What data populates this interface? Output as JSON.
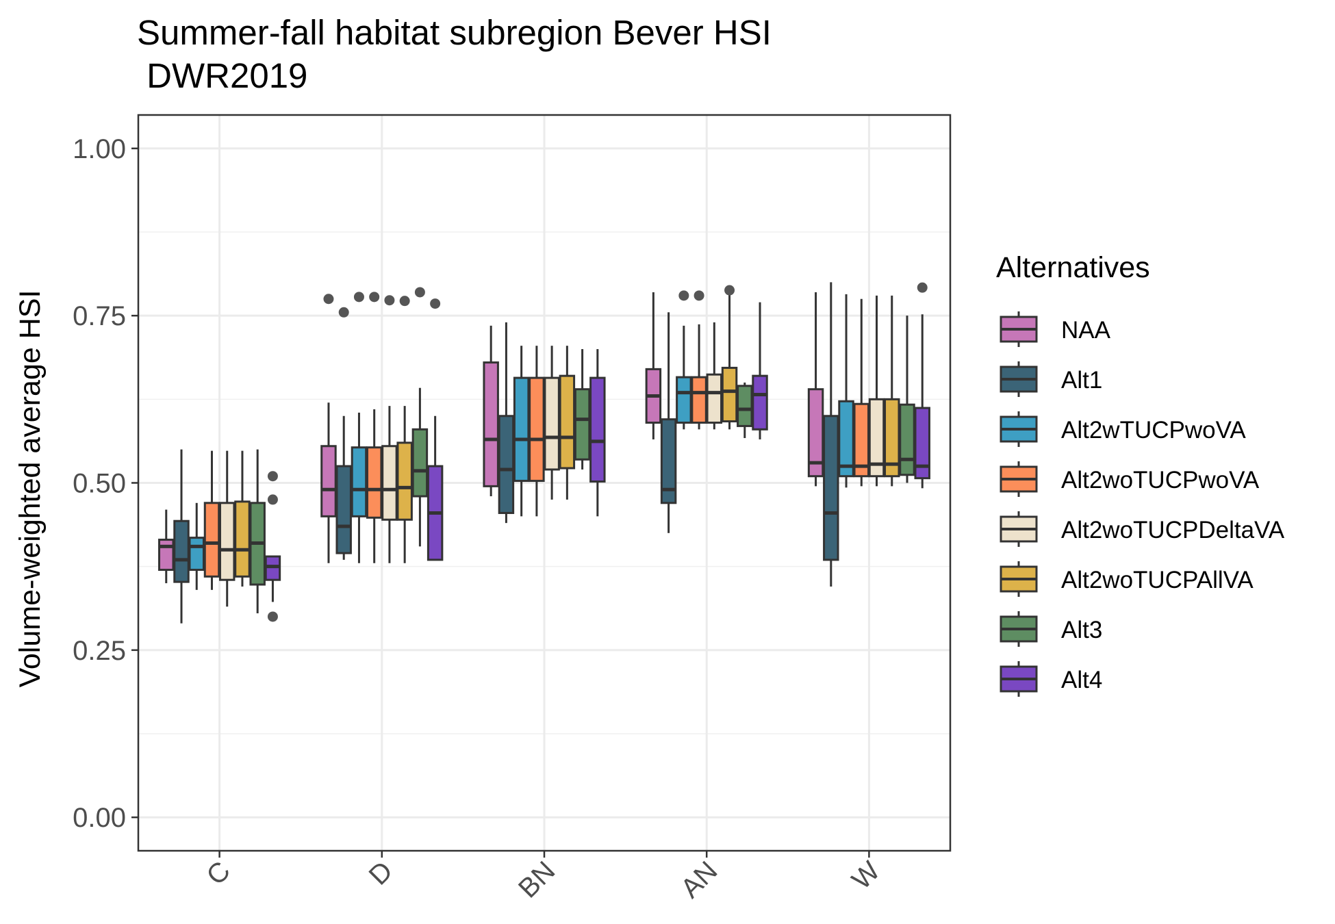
{
  "chart_data": {
    "type": "box",
    "title_lines": [
      "Summer-fall habitat subregion Bever HSI",
      " DWR2019"
    ],
    "xlabel": "",
    "ylabel": "Volume-weighted average HSI",
    "ylim": [
      -0.05,
      1.05
    ],
    "yticks": [
      0.0,
      0.25,
      0.5,
      0.75,
      1.0
    ],
    "ytick_labels": [
      "0.00",
      "0.25",
      "0.50",
      "0.75",
      "1.00"
    ],
    "categories": [
      "C",
      "D",
      "BN",
      "AN",
      "W"
    ],
    "grid": true,
    "legend": {
      "title": "Alternatives",
      "position": "right"
    },
    "series": [
      {
        "name": "NAA",
        "color": "#c677b8",
        "boxes": [
          {
            "whisker_low": 0.35,
            "q1": 0.37,
            "median": 0.405,
            "q3": 0.415,
            "whisker_high": 0.46,
            "outliers": []
          },
          {
            "whisker_low": 0.38,
            "q1": 0.45,
            "median": 0.49,
            "q3": 0.555,
            "whisker_high": 0.62,
            "outliers": [
              0.775
            ]
          },
          {
            "whisker_low": 0.48,
            "q1": 0.495,
            "median": 0.565,
            "q3": 0.68,
            "whisker_high": 0.735,
            "outliers": []
          },
          {
            "whisker_low": 0.565,
            "q1": 0.59,
            "median": 0.63,
            "q3": 0.67,
            "whisker_high": 0.785,
            "outliers": []
          },
          {
            "whisker_low": 0.495,
            "q1": 0.51,
            "median": 0.53,
            "q3": 0.64,
            "whisker_high": 0.785,
            "outliers": []
          }
        ]
      },
      {
        "name": "Alt1",
        "color": "#3b6477",
        "boxes": [
          {
            "whisker_low": 0.29,
            "q1": 0.352,
            "median": 0.385,
            "q3": 0.443,
            "whisker_high": 0.55,
            "outliers": []
          },
          {
            "whisker_low": 0.385,
            "q1": 0.395,
            "median": 0.435,
            "q3": 0.525,
            "whisker_high": 0.6,
            "outliers": [
              0.755
            ]
          },
          {
            "whisker_low": 0.44,
            "q1": 0.455,
            "median": 0.52,
            "q3": 0.6,
            "whisker_high": 0.74,
            "outliers": []
          },
          {
            "whisker_low": 0.425,
            "q1": 0.47,
            "median": 0.49,
            "q3": 0.595,
            "whisker_high": 0.755,
            "outliers": []
          },
          {
            "whisker_low": 0.345,
            "q1": 0.385,
            "median": 0.455,
            "q3": 0.6,
            "whisker_high": 0.8,
            "outliers": []
          }
        ]
      },
      {
        "name": "Alt2wTUCPwoVA",
        "color": "#3e9fc3",
        "boxes": [
          {
            "whisker_low": 0.34,
            "q1": 0.37,
            "median": 0.405,
            "q3": 0.418,
            "whisker_high": 0.47,
            "outliers": []
          },
          {
            "whisker_low": 0.38,
            "q1": 0.45,
            "median": 0.49,
            "q3": 0.553,
            "whisker_high": 0.605,
            "outliers": [
              0.778
            ]
          },
          {
            "whisker_low": 0.45,
            "q1": 0.503,
            "median": 0.565,
            "q3": 0.657,
            "whisker_high": 0.705,
            "outliers": []
          },
          {
            "whisker_low": 0.58,
            "q1": 0.59,
            "median": 0.635,
            "q3": 0.658,
            "whisker_high": 0.735,
            "outliers": [
              0.78
            ]
          },
          {
            "whisker_low": 0.493,
            "q1": 0.51,
            "median": 0.525,
            "q3": 0.622,
            "whisker_high": 0.782,
            "outliers": []
          }
        ]
      },
      {
        "name": "Alt2woTUCPwoVA",
        "color": "#fc8e5a",
        "boxes": [
          {
            "whisker_low": 0.34,
            "q1": 0.36,
            "median": 0.41,
            "q3": 0.47,
            "whisker_high": 0.548,
            "outliers": []
          },
          {
            "whisker_low": 0.38,
            "q1": 0.448,
            "median": 0.49,
            "q3": 0.553,
            "whisker_high": 0.61,
            "outliers": [
              0.778
            ]
          },
          {
            "whisker_low": 0.45,
            "q1": 0.503,
            "median": 0.565,
            "q3": 0.657,
            "whisker_high": 0.705,
            "outliers": []
          },
          {
            "whisker_low": 0.58,
            "q1": 0.59,
            "median": 0.635,
            "q3": 0.658,
            "whisker_high": 0.737,
            "outliers": [
              0.78
            ]
          },
          {
            "whisker_low": 0.495,
            "q1": 0.51,
            "median": 0.525,
            "q3": 0.618,
            "whisker_high": 0.775,
            "outliers": []
          }
        ]
      },
      {
        "name": "Alt2woTUCPDeltaVA",
        "color": "#ede2cc",
        "boxes": [
          {
            "whisker_low": 0.315,
            "q1": 0.355,
            "median": 0.4,
            "q3": 0.47,
            "whisker_high": 0.548,
            "outliers": []
          },
          {
            "whisker_low": 0.38,
            "q1": 0.445,
            "median": 0.49,
            "q3": 0.555,
            "whisker_high": 0.615,
            "outliers": [
              0.773
            ]
          },
          {
            "whisker_low": 0.475,
            "q1": 0.52,
            "median": 0.568,
            "q3": 0.657,
            "whisker_high": 0.705,
            "outliers": []
          },
          {
            "whisker_low": 0.58,
            "q1": 0.59,
            "median": 0.635,
            "q3": 0.662,
            "whisker_high": 0.74,
            "outliers": []
          },
          {
            "whisker_low": 0.495,
            "q1": 0.51,
            "median": 0.528,
            "q3": 0.625,
            "whisker_high": 0.78,
            "outliers": []
          }
        ]
      },
      {
        "name": "Alt2woTUCPAllVA",
        "color": "#ddb24a",
        "boxes": [
          {
            "whisker_low": 0.345,
            "q1": 0.36,
            "median": 0.4,
            "q3": 0.472,
            "whisker_high": 0.548,
            "outliers": []
          },
          {
            "whisker_low": 0.38,
            "q1": 0.445,
            "median": 0.493,
            "q3": 0.56,
            "whisker_high": 0.615,
            "outliers": [
              0.772
            ]
          },
          {
            "whisker_low": 0.475,
            "q1": 0.522,
            "median": 0.568,
            "q3": 0.66,
            "whisker_high": 0.705,
            "outliers": []
          },
          {
            "whisker_low": 0.58,
            "q1": 0.592,
            "median": 0.637,
            "q3": 0.672,
            "whisker_high": 0.787,
            "outliers": [
              0.788
            ]
          },
          {
            "whisker_low": 0.495,
            "q1": 0.51,
            "median": 0.528,
            "q3": 0.625,
            "whisker_high": 0.78,
            "outliers": []
          }
        ]
      },
      {
        "name": "Alt3",
        "color": "#5e8d62",
        "boxes": [
          {
            "whisker_low": 0.305,
            "q1": 0.348,
            "median": 0.41,
            "q3": 0.47,
            "whisker_high": 0.55,
            "outliers": []
          },
          {
            "whisker_low": 0.405,
            "q1": 0.48,
            "median": 0.518,
            "q3": 0.58,
            "whisker_high": 0.642,
            "outliers": [
              0.785
            ]
          },
          {
            "whisker_low": 0.52,
            "q1": 0.535,
            "median": 0.595,
            "q3": 0.64,
            "whisker_high": 0.7,
            "outliers": []
          },
          {
            "whisker_low": 0.567,
            "q1": 0.585,
            "median": 0.61,
            "q3": 0.645,
            "whisker_high": 0.65,
            "outliers": []
          },
          {
            "whisker_low": 0.5,
            "q1": 0.512,
            "median": 0.535,
            "q3": 0.617,
            "whisker_high": 0.75,
            "outliers": []
          }
        ]
      },
      {
        "name": "Alt4",
        "color": "#7a48c2",
        "boxes": [
          {
            "whisker_low": 0.322,
            "q1": 0.355,
            "median": 0.375,
            "q3": 0.39,
            "whisker_high": 0.39,
            "outliers": [
              0.51,
              0.475,
              0.3
            ]
          },
          {
            "whisker_low": 0.385,
            "q1": 0.385,
            "median": 0.455,
            "q3": 0.525,
            "whisker_high": 0.6,
            "outliers": [
              0.768
            ]
          },
          {
            "whisker_low": 0.45,
            "q1": 0.502,
            "median": 0.562,
            "q3": 0.657,
            "whisker_high": 0.7,
            "outliers": []
          },
          {
            "whisker_low": 0.565,
            "q1": 0.58,
            "median": 0.632,
            "q3": 0.66,
            "whisker_high": 0.77,
            "outliers": []
          },
          {
            "whisker_low": 0.492,
            "q1": 0.507,
            "median": 0.525,
            "q3": 0.612,
            "whisker_high": 0.752,
            "outliers": [
              0.792
            ]
          }
        ]
      }
    ]
  }
}
